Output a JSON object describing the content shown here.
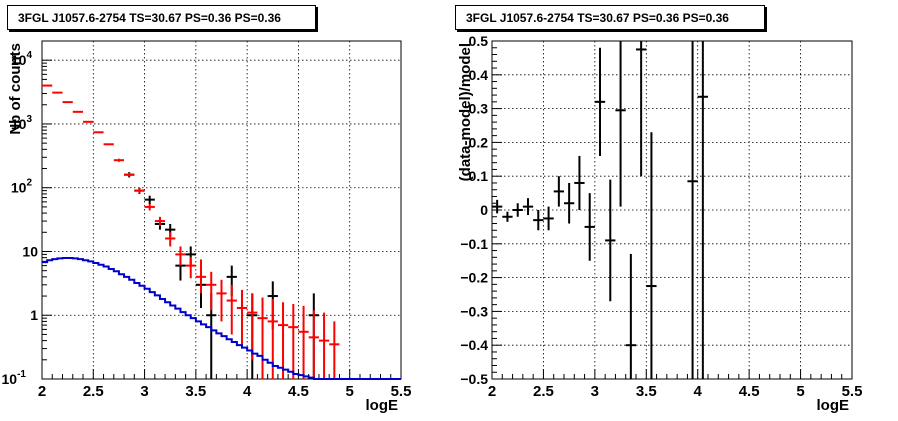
{
  "chart_data": [
    {
      "type": "scatter",
      "title": "3FGL J1057.6-2754 TS=30.67 PS=0.36 PS=0.36",
      "xlabel": "logE",
      "ylabel": "Nb of counts",
      "xlim": [
        2,
        5.5
      ],
      "ylim": [
        0.1,
        20000
      ],
      "yscale": "log",
      "grid": true,
      "x_ticks": [
        "2",
        "2.5",
        "3",
        "3.5",
        "4",
        "4.5",
        "5",
        "5.5"
      ],
      "y_ticks": [
        {
          "value": 0.1,
          "label": "10",
          "exp": "-1"
        },
        {
          "value": 1,
          "label": "1",
          "exp": ""
        },
        {
          "value": 10,
          "label": "10",
          "exp": ""
        },
        {
          "value": 100,
          "label": "10",
          "exp": "2"
        },
        {
          "value": 1000,
          "label": "10",
          "exp": "3"
        },
        {
          "value": 10000,
          "label": "10",
          "exp": "4"
        }
      ],
      "series": [
        {
          "kind": "data",
          "color": "#000000",
          "points": [
            {
              "x": 2.85,
              "y": 160,
              "lo": 145,
              "hi": 175
            },
            {
              "x": 2.95,
              "y": 90,
              "lo": 80,
              "hi": 100
            },
            {
              "x": 3.05,
              "y": 65,
              "lo": 55,
              "hi": 75
            },
            {
              "x": 3.15,
              "y": 27,
              "lo": 22,
              "hi": 32
            },
            {
              "x": 3.25,
              "y": 22,
              "lo": 17,
              "hi": 27
            },
            {
              "x": 3.35,
              "y": 6,
              "lo": 3.5,
              "hi": 8.5
            },
            {
              "x": 3.45,
              "y": 9,
              "lo": 6,
              "hi": 12
            },
            {
              "x": 3.55,
              "y": 3,
              "lo": 1.3,
              "hi": 4.7
            },
            {
              "x": 3.65,
              "y": 1,
              "lo": 0.1,
              "hi": 2.2
            },
            {
              "x": 3.85,
              "y": 4,
              "lo": 2,
              "hi": 6
            },
            {
              "x": 4.05,
              "y": 1,
              "lo": 0.1,
              "hi": 2.2
            },
            {
              "x": 4.25,
              "y": 2,
              "lo": 0.6,
              "hi": 3.4
            },
            {
              "x": 4.65,
              "y": 1,
              "lo": 0.1,
              "hi": 2.2
            }
          ]
        },
        {
          "kind": "model-total",
          "color": "#ff0000",
          "points": [
            {
              "x": 2.05,
              "y": 4000
            },
            {
              "x": 2.15,
              "y": 3100
            },
            {
              "x": 2.25,
              "y": 2200
            },
            {
              "x": 2.35,
              "y": 1550
            },
            {
              "x": 2.45,
              "y": 1080
            },
            {
              "x": 2.55,
              "y": 740
            },
            {
              "x": 2.65,
              "y": 480
            },
            {
              "x": 2.75,
              "y": 270,
              "lo": 255,
              "hi": 285
            },
            {
              "x": 2.85,
              "y": 160,
              "lo": 150,
              "hi": 170
            },
            {
              "x": 2.95,
              "y": 90,
              "lo": 82,
              "hi": 98
            },
            {
              "x": 3.05,
              "y": 50,
              "lo": 44,
              "hi": 56
            },
            {
              "x": 3.15,
              "y": 30,
              "lo": 25,
              "hi": 35
            },
            {
              "x": 3.25,
              "y": 16,
              "lo": 12,
              "hi": 20
            },
            {
              "x": 3.35,
              "y": 9,
              "lo": 6,
              "hi": 12
            },
            {
              "x": 3.45,
              "y": 6,
              "lo": 3.8,
              "hi": 8.2
            },
            {
              "x": 3.55,
              "y": 4,
              "lo": 2.2,
              "hi": 7.5
            },
            {
              "x": 3.65,
              "y": 3,
              "lo": 1.2,
              "hi": 4.8
            },
            {
              "x": 3.75,
              "y": 2.2,
              "lo": 0.8,
              "hi": 3.6
            },
            {
              "x": 3.85,
              "y": 1.7,
              "lo": 0.5,
              "hi": 3
            },
            {
              "x": 3.95,
              "y": 1.3,
              "lo": 0.3,
              "hi": 2.5
            },
            {
              "x": 4.05,
              "y": 1.1,
              "lo": 0.2,
              "hi": 2.2
            },
            {
              "x": 4.15,
              "y": 0.9,
              "lo": 0.1,
              "hi": 1.9
            },
            {
              "x": 4.25,
              "y": 0.8,
              "lo": 0.1,
              "hi": 1.8
            },
            {
              "x": 4.35,
              "y": 0.7,
              "lo": 0.1,
              "hi": 1.6
            },
            {
              "x": 4.45,
              "y": 0.65,
              "lo": 0.1,
              "hi": 1.5
            },
            {
              "x": 4.55,
              "y": 0.55,
              "lo": 0.1,
              "hi": 1.4
            },
            {
              "x": 4.65,
              "y": 0.45,
              "lo": 0.1,
              "hi": 1.2
            },
            {
              "x": 4.75,
              "y": 0.4,
              "lo": 0.1,
              "hi": 1.1
            },
            {
              "x": 4.85,
              "y": 0.35,
              "lo": 0.1,
              "hi": 0.8
            }
          ]
        },
        {
          "kind": "background-histogram",
          "color": "#0000cc",
          "edges": [
            2.0,
            2.05,
            2.1,
            2.15,
            2.2,
            2.25,
            2.3,
            2.35,
            2.4,
            2.45,
            2.5,
            2.55,
            2.6,
            2.65,
            2.7,
            2.75,
            2.8,
            2.85,
            2.9,
            2.95,
            3.0,
            3.05,
            3.1,
            3.15,
            3.2,
            3.25,
            3.3,
            3.35,
            3.4,
            3.45,
            3.5,
            3.55,
            3.6,
            3.65,
            3.7,
            3.75,
            3.8,
            3.85,
            3.9,
            3.95,
            4.0,
            4.05,
            4.1,
            4.15,
            4.2,
            4.25,
            4.3,
            4.35,
            4.4,
            4.45,
            4.5,
            4.55,
            4.6,
            4.65,
            4.7,
            4.75,
            4.8,
            4.85,
            4.9,
            4.95,
            5.0,
            5.5
          ],
          "values": [
            6.8,
            7.3,
            7.6,
            7.8,
            7.9,
            7.9,
            7.8,
            7.6,
            7.3,
            7.0,
            6.6,
            6.2,
            5.8,
            5.3,
            4.9,
            4.4,
            4.0,
            3.6,
            3.2,
            2.9,
            2.6,
            2.3,
            2.05,
            1.8,
            1.6,
            1.42,
            1.27,
            1.12,
            1.0,
            0.9,
            0.8,
            0.72,
            0.65,
            0.58,
            0.52,
            0.47,
            0.42,
            0.38,
            0.34,
            0.31,
            0.28,
            0.25,
            0.23,
            0.2,
            0.18,
            0.16,
            0.15,
            0.14,
            0.13,
            0.12,
            0.115,
            0.11,
            0.105,
            0.1,
            0.1,
            0.1,
            0.1,
            0.1,
            0.1,
            0.1,
            0.1
          ]
        }
      ]
    },
    {
      "type": "scatter",
      "title": "3FGL J1057.6-2754 TS=30.67 PS=0.36 PS=0.36",
      "xlabel": "logE",
      "ylabel": "(data-model)/model",
      "xlim": [
        2,
        5.5
      ],
      "ylim": [
        -0.5,
        0.5
      ],
      "grid": true,
      "x_ticks": [
        "2",
        "2.5",
        "3",
        "3.5",
        "4",
        "4.5",
        "5",
        "5.5"
      ],
      "y_ticks": [
        "−0.5",
        "−0.4",
        "−0.3",
        "−0.2",
        "−0.1",
        "0",
        "0.1",
        "0.2",
        "0.3",
        "0.4",
        "0.5"
      ],
      "series": [
        {
          "kind": "residuals",
          "color": "#000000",
          "points": [
            {
              "x": 2.05,
              "y": 0.01,
              "lo": -0.01,
              "hi": 0.03
            },
            {
              "x": 2.15,
              "y": -0.02,
              "lo": -0.035,
              "hi": -0.005
            },
            {
              "x": 2.25,
              "y": 0.0,
              "lo": -0.02,
              "hi": 0.02
            },
            {
              "x": 2.35,
              "y": 0.01,
              "lo": -0.015,
              "hi": 0.035
            },
            {
              "x": 2.45,
              "y": -0.03,
              "lo": -0.06,
              "hi": 0.0
            },
            {
              "x": 2.55,
              "y": -0.025,
              "lo": -0.06,
              "hi": 0.01
            },
            {
              "x": 2.65,
              "y": 0.055,
              "lo": 0.01,
              "hi": 0.1
            },
            {
              "x": 2.75,
              "y": 0.02,
              "lo": -0.04,
              "hi": 0.08
            },
            {
              "x": 2.85,
              "y": 0.08,
              "lo": 0.0,
              "hi": 0.16
            },
            {
              "x": 2.95,
              "y": -0.05,
              "lo": -0.15,
              "hi": 0.05
            },
            {
              "x": 3.05,
              "y": 0.32,
              "lo": 0.16,
              "hi": 0.48
            },
            {
              "x": 3.15,
              "y": -0.09,
              "lo": -0.27,
              "hi": 0.09
            },
            {
              "x": 3.25,
              "y": 0.295,
              "lo": 0.01,
              "hi": 0.5
            },
            {
              "x": 3.35,
              "y": -0.4,
              "lo": -0.5,
              "hi": -0.13
            },
            {
              "x": 3.45,
              "y": 0.475,
              "lo": 0.1,
              "hi": 0.5
            },
            {
              "x": 3.55,
              "y": -0.225,
              "lo": -0.5,
              "hi": 0.23
            },
            {
              "x": 3.95,
              "y": 0.085,
              "lo": -0.5,
              "hi": 0.5
            },
            {
              "x": 4.05,
              "y": 0.335,
              "lo": -0.5,
              "hi": 0.5
            }
          ]
        }
      ]
    }
  ]
}
